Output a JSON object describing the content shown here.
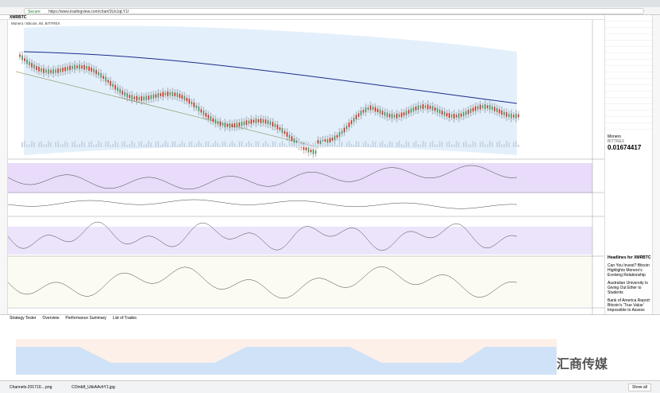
{
  "browser": {
    "secure": "Secure",
    "url": "https://www.tradingview.com/chart/3Ux1qLY1/"
  },
  "chart": {
    "symbol": "XMRBTC",
    "legend": "Monero / Bitcoin, 60, BITTREX"
  },
  "details": {
    "name": "Monero",
    "exchange": "BITTREX",
    "price": "0.01674417"
  },
  "news": {
    "title": "Headlines for XMRBTC",
    "items": [
      "Can You Invest? Bitcoin Highlights Monero's Evolving Relationship",
      "Australian University Is Giving Out Ether to Students",
      "Bank of America Report: Bitcoin's 'True Value' Impossible to Assess"
    ]
  },
  "bottom": {
    "tabs": [
      "Strategy Tester",
      "Overview",
      "Performance Summary",
      "List of Trades"
    ]
  },
  "downloads": {
    "files": [
      "Channels-201710....png",
      "COmb8_UkkAAvhY1.jpg"
    ],
    "show_all": "Show all"
  },
  "watermark": "汇商传媒"
}
